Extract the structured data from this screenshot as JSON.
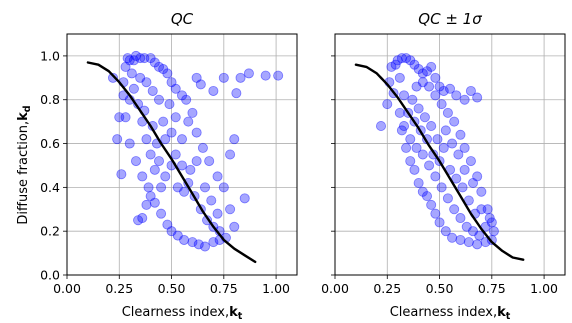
{
  "chart_data": [
    {
      "type": "scatter",
      "title": "QC",
      "xlabel": "Clearness index,",
      "xlabel_sub": "k",
      "xlabel_subscript": "t",
      "ylabel": "Diffuse fraction,",
      "ylabel_sub": "k",
      "ylabel_subscript": "d",
      "xlim": [
        0.0,
        1.1
      ],
      "ylim": [
        0.0,
        1.1
      ],
      "xticks": [
        "0.00",
        "0.25",
        "0.50",
        "0.75",
        "1.00"
      ],
      "yticks": [
        "0.0",
        "0.2",
        "0.4",
        "0.6",
        "0.8",
        "1.0"
      ],
      "grid": true,
      "point_color": "#0000ff",
      "point_alpha": 0.35,
      "line_color": "#000000",
      "points": [
        [
          0.22,
          0.9
        ],
        [
          0.24,
          0.62
        ],
        [
          0.25,
          0.72
        ],
        [
          0.26,
          0.46
        ],
        [
          0.27,
          0.82
        ],
        [
          0.28,
          0.95
        ],
        [
          0.29,
          0.99
        ],
        [
          0.3,
          0.98
        ],
        [
          0.32,
          0.98
        ],
        [
          0.33,
          1.0
        ],
        [
          0.35,
          0.99
        ],
        [
          0.37,
          0.99
        ],
        [
          0.4,
          0.99
        ],
        [
          0.42,
          0.97
        ],
        [
          0.44,
          0.95
        ],
        [
          0.46,
          0.94
        ],
        [
          0.48,
          0.92
        ],
        [
          0.5,
          0.88
        ],
        [
          0.52,
          0.85
        ],
        [
          0.55,
          0.82
        ],
        [
          0.57,
          0.8
        ],
        [
          0.6,
          0.74
        ],
        [
          0.62,
          0.9
        ],
        [
          0.64,
          0.87
        ],
        [
          0.7,
          0.84
        ],
        [
          0.75,
          0.9
        ],
        [
          0.81,
          0.83
        ],
        [
          0.83,
          0.9
        ],
        [
          0.87,
          0.92
        ],
        [
          0.8,
          0.62
        ],
        [
          0.78,
          0.55
        ],
        [
          0.85,
          0.35
        ],
        [
          0.34,
          0.25
        ],
        [
          0.36,
          0.26
        ],
        [
          0.38,
          0.32
        ],
        [
          0.4,
          0.36
        ],
        [
          0.42,
          0.33
        ],
        [
          0.45,
          0.28
        ],
        [
          0.48,
          0.23
        ],
        [
          0.5,
          0.2
        ],
        [
          0.53,
          0.18
        ],
        [
          0.56,
          0.16
        ],
        [
          0.6,
          0.15
        ],
        [
          0.63,
          0.14
        ],
        [
          0.66,
          0.13
        ],
        [
          0.7,
          0.15
        ],
        [
          0.73,
          0.16
        ],
        [
          0.76,
          0.17
        ],
        [
          0.8,
          0.22
        ],
        [
          0.78,
          0.3
        ],
        [
          0.75,
          0.4
        ],
        [
          0.72,
          0.45
        ],
        [
          0.68,
          0.52
        ],
        [
          0.65,
          0.58
        ],
        [
          0.62,
          0.65
        ],
        [
          0.58,
          0.7
        ],
        [
          0.55,
          0.62
        ],
        [
          0.52,
          0.55
        ],
        [
          0.5,
          0.5
        ],
        [
          0.47,
          0.45
        ],
        [
          0.45,
          0.4
        ],
        [
          0.42,
          0.48
        ],
        [
          0.4,
          0.55
        ],
        [
          0.38,
          0.62
        ],
        [
          0.36,
          0.7
        ],
        [
          0.34,
          0.78
        ],
        [
          0.32,
          0.85
        ],
        [
          0.3,
          0.8
        ],
        [
          0.28,
          0.72
        ],
        [
          0.3,
          0.6
        ],
        [
          0.33,
          0.52
        ],
        [
          0.36,
          0.45
        ],
        [
          0.39,
          0.4
        ],
        [
          0.43,
          0.6
        ],
        [
          0.46,
          0.7
        ],
        [
          0.49,
          0.78
        ],
        [
          0.52,
          0.72
        ],
        [
          0.55,
          0.5
        ],
        [
          0.58,
          0.42
        ],
        [
          0.61,
          0.36
        ],
        [
          0.64,
          0.3
        ],
        [
          0.67,
          0.25
        ],
        [
          0.7,
          0.22
        ],
        [
          0.73,
          0.2
        ],
        [
          0.56,
          0.38
        ],
        [
          0.59,
          0.48
        ],
        [
          0.62,
          0.52
        ],
        [
          0.66,
          0.4
        ],
        [
          0.69,
          0.34
        ],
        [
          0.72,
          0.28
        ],
        [
          0.35,
          0.9
        ],
        [
          0.38,
          0.88
        ],
        [
          0.41,
          0.84
        ],
        [
          0.44,
          0.8
        ],
        [
          0.47,
          0.62
        ],
        [
          0.5,
          0.65
        ],
        [
          0.53,
          0.4
        ],
        [
          0.44,
          0.52
        ],
        [
          0.41,
          0.68
        ],
        [
          0.37,
          0.75
        ],
        [
          0.31,
          0.92
        ],
        [
          0.27,
          0.88
        ],
        [
          1.01,
          0.91
        ],
        [
          0.95,
          0.91
        ]
      ],
      "fit_line": {
        "x": [
          0.1,
          0.15,
          0.2,
          0.25,
          0.3,
          0.35,
          0.4,
          0.45,
          0.5,
          0.55,
          0.6,
          0.65,
          0.7,
          0.75,
          0.8,
          0.85,
          0.9
        ],
        "y": [
          0.97,
          0.96,
          0.93,
          0.88,
          0.82,
          0.75,
          0.68,
          0.6,
          0.53,
          0.45,
          0.37,
          0.29,
          0.22,
          0.16,
          0.12,
          0.09,
          0.06
        ]
      }
    },
    {
      "type": "scatter",
      "title": "QC ± 1σ",
      "xlabel": "Clearness index,",
      "xlabel_sub": "k",
      "xlabel_subscript": "t",
      "xlim": [
        0.0,
        1.1
      ],
      "ylim": [
        0.0,
        1.1
      ],
      "xticks": [
        "0.00",
        "0.25",
        "0.50",
        "0.75",
        "1.00"
      ],
      "yticks": [],
      "grid": true,
      "point_color": "#0000ff",
      "point_alpha": 0.35,
      "line_color": "#000000",
      "points": [
        [
          0.22,
          0.68
        ],
        [
          0.25,
          0.78
        ],
        [
          0.26,
          0.88
        ],
        [
          0.27,
          0.95
        ],
        [
          0.28,
          0.83
        ],
        [
          0.29,
          0.96
        ],
        [
          0.3,
          0.98
        ],
        [
          0.31,
          0.74
        ],
        [
          0.32,
          0.99
        ],
        [
          0.34,
          0.99
        ],
        [
          0.36,
          0.98
        ],
        [
          0.38,
          0.96
        ],
        [
          0.4,
          0.94
        ],
        [
          0.42,
          0.92
        ],
        [
          0.44,
          0.93
        ],
        [
          0.46,
          0.95
        ],
        [
          0.48,
          0.9
        ],
        [
          0.5,
          0.86
        ],
        [
          0.52,
          0.84
        ],
        [
          0.55,
          0.85
        ],
        [
          0.58,
          0.82
        ],
        [
          0.62,
          0.8
        ],
        [
          0.65,
          0.84
        ],
        [
          0.68,
          0.81
        ],
        [
          0.32,
          0.66
        ],
        [
          0.34,
          0.58
        ],
        [
          0.36,
          0.52
        ],
        [
          0.38,
          0.48
        ],
        [
          0.4,
          0.42
        ],
        [
          0.42,
          0.38
        ],
        [
          0.44,
          0.36
        ],
        [
          0.46,
          0.32
        ],
        [
          0.48,
          0.28
        ],
        [
          0.5,
          0.24
        ],
        [
          0.53,
          0.2
        ],
        [
          0.56,
          0.17
        ],
        [
          0.6,
          0.16
        ],
        [
          0.64,
          0.15
        ],
        [
          0.68,
          0.14
        ],
        [
          0.72,
          0.15
        ],
        [
          0.75,
          0.16
        ],
        [
          0.76,
          0.2
        ],
        [
          0.75,
          0.24
        ],
        [
          0.73,
          0.3
        ],
        [
          0.7,
          0.38
        ],
        [
          0.68,
          0.45
        ],
        [
          0.65,
          0.52
        ],
        [
          0.62,
          0.58
        ],
        [
          0.6,
          0.64
        ],
        [
          0.57,
          0.7
        ],
        [
          0.54,
          0.74
        ],
        [
          0.51,
          0.78
        ],
        [
          0.48,
          0.82
        ],
        [
          0.45,
          0.86
        ],
        [
          0.42,
          0.88
        ],
        [
          0.39,
          0.86
        ],
        [
          0.37,
          0.8
        ],
        [
          0.35,
          0.74
        ],
        [
          0.33,
          0.68
        ],
        [
          0.36,
          0.62
        ],
        [
          0.39,
          0.58
        ],
        [
          0.42,
          0.55
        ],
        [
          0.45,
          0.5
        ],
        [
          0.48,
          0.45
        ],
        [
          0.51,
          0.4
        ],
        [
          0.54,
          0.35
        ],
        [
          0.57,
          0.3
        ],
        [
          0.6,
          0.26
        ],
        [
          0.63,
          0.22
        ],
        [
          0.66,
          0.2
        ],
        [
          0.69,
          0.18
        ],
        [
          0.72,
          0.22
        ],
        [
          0.55,
          0.48
        ],
        [
          0.58,
          0.44
        ],
        [
          0.61,
          0.4
        ],
        [
          0.64,
          0.34
        ],
        [
          0.67,
          0.28
        ],
        [
          0.52,
          0.58
        ],
        [
          0.49,
          0.62
        ],
        [
          0.46,
          0.68
        ],
        [
          0.43,
          0.72
        ],
        [
          0.4,
          0.76
        ],
        [
          0.44,
          0.62
        ],
        [
          0.47,
          0.55
        ],
        [
          0.5,
          0.52
        ],
        [
          0.53,
          0.66
        ],
        [
          0.56,
          0.6
        ],
        [
          0.59,
          0.55
        ],
        [
          0.62,
          0.48
        ],
        [
          0.66,
          0.42
        ],
        [
          0.7,
          0.3
        ],
        [
          0.74,
          0.26
        ],
        [
          0.38,
          0.7
        ],
        [
          0.41,
          0.66
        ],
        [
          0.31,
          0.9
        ],
        [
          0.33,
          0.82
        ]
      ],
      "fit_line": {
        "x": [
          0.1,
          0.15,
          0.2,
          0.25,
          0.3,
          0.35,
          0.4,
          0.45,
          0.5,
          0.55,
          0.6,
          0.65,
          0.7,
          0.75,
          0.8,
          0.85,
          0.9
        ],
        "y": [
          0.96,
          0.95,
          0.92,
          0.87,
          0.81,
          0.74,
          0.67,
          0.59,
          0.52,
          0.44,
          0.36,
          0.28,
          0.21,
          0.15,
          0.11,
          0.08,
          0.07
        ]
      }
    }
  ]
}
